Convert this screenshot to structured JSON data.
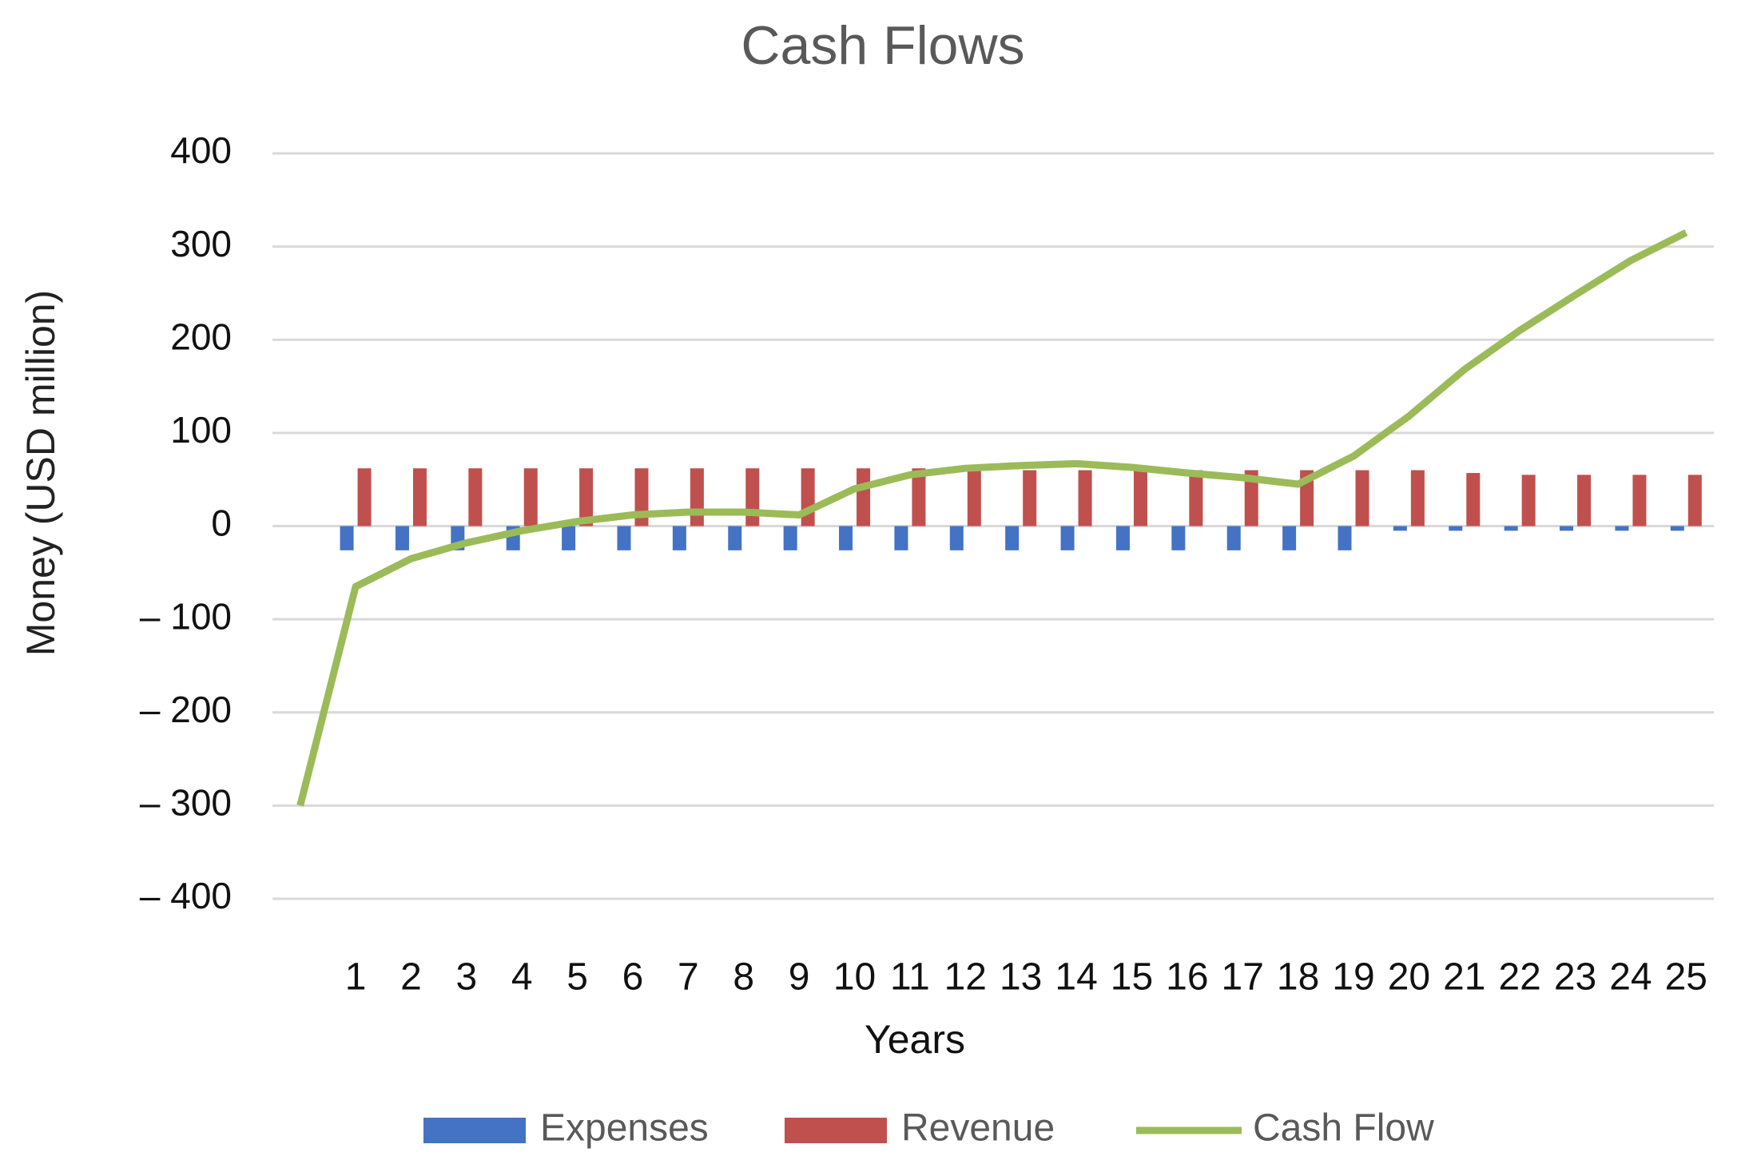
{
  "chart_data": {
    "type": "bar-line",
    "title": "Cash Flows",
    "x_label": "Years",
    "y_label": "Money (USD million)",
    "categories": [
      null,
      "1",
      "2",
      "3",
      "4",
      "5",
      "6",
      "7",
      "8",
      "9",
      "10",
      "11",
      "12",
      "13",
      "14",
      "15",
      "16",
      "17",
      "18",
      "19",
      "20",
      "21",
      "22",
      "23",
      "24",
      "25"
    ],
    "series": [
      {
        "name": "Expenses",
        "type": "bar",
        "color": "#4472c4",
        "values": [
          null,
          -26,
          -26,
          -26,
          -26,
          -26,
          -26,
          -26,
          -26,
          -26,
          -26,
          -26,
          -26,
          -26,
          -26,
          -26,
          -26,
          -26,
          -26,
          -26,
          -5,
          -5,
          -5,
          -5,
          -5,
          -5
        ]
      },
      {
        "name": "Revenue",
        "type": "bar",
        "color": "#c0504d",
        "values": [
          null,
          62,
          62,
          62,
          62,
          62,
          62,
          62,
          62,
          62,
          62,
          62,
          60,
          60,
          60,
          60,
          60,
          60,
          60,
          60,
          60,
          57,
          55,
          55,
          55,
          55
        ]
      },
      {
        "name": "Cash Flow",
        "type": "line",
        "color": "#9bbb59",
        "values": [
          -300,
          -65,
          -35,
          -18,
          -5,
          5,
          12,
          15,
          15,
          12,
          40,
          55,
          62,
          65,
          67,
          63,
          57,
          52,
          45,
          75,
          118,
          168,
          210,
          248,
          285,
          315
        ]
      }
    ],
    "ylim": [
      -400,
      400
    ],
    "yticks": [
      {
        "value": -400,
        "label": "– 400"
      },
      {
        "value": -300,
        "label": "– 300"
      },
      {
        "value": -200,
        "label": "– 200"
      },
      {
        "value": -100,
        "label": "– 100"
      },
      0,
      100,
      200,
      300,
      400
    ],
    "grid": true,
    "legend": "bottom"
  }
}
